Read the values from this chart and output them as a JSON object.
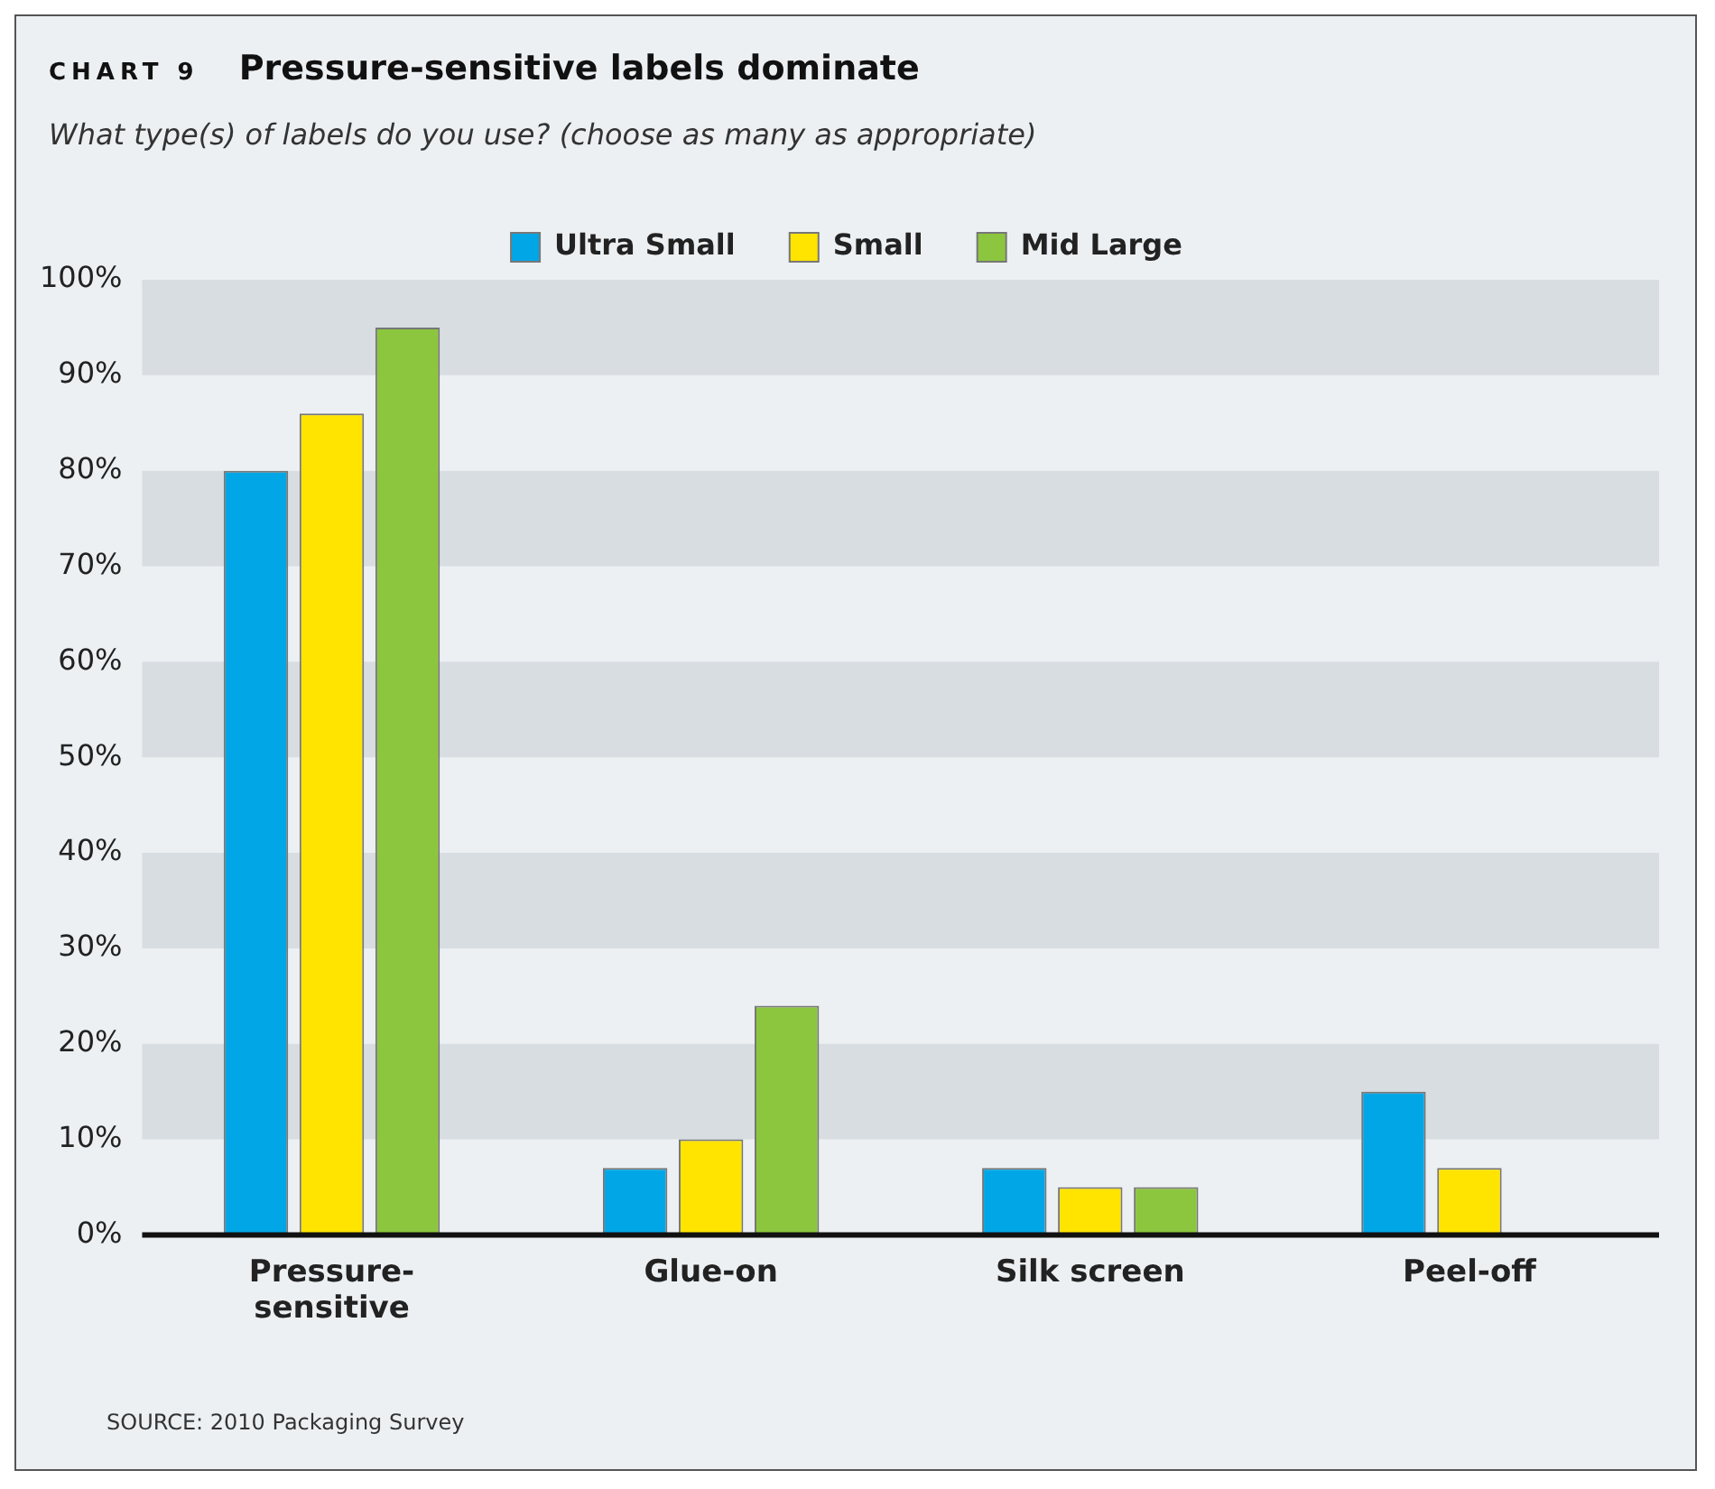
{
  "chart_data": {
    "type": "bar",
    "title": "Pressure-sensitive labels dominate",
    "subtitle": "What type(s) of labels do you use? (choose as many as appropriate)",
    "annotations": [
      "CHART 9",
      "SOURCE: 2010 Packaging Survey"
    ],
    "categories": [
      "Pressure-\nsensitive",
      "Glue-on",
      "Silk screen",
      "Peel-off"
    ],
    "series": [
      {
        "name": "Ultra Small",
        "color": "#00a6e6",
        "values": [
          80,
          7,
          7,
          15
        ]
      },
      {
        "name": "Small",
        "color": "#ffe400",
        "values": [
          86,
          10,
          5,
          7
        ]
      },
      {
        "name": "Mid Large",
        "color": "#8cc63e",
        "values": [
          95,
          24,
          5,
          null
        ]
      }
    ],
    "ylim": [
      0,
      100
    ],
    "yticks": [
      {
        "value": 0,
        "label": "0%"
      },
      {
        "value": 10,
        "label": "10%"
      },
      {
        "value": 20,
        "label": "20%"
      },
      {
        "value": 30,
        "label": "30%"
      },
      {
        "value": 40,
        "label": "40%"
      },
      {
        "value": 50,
        "label": "50%"
      },
      {
        "value": 60,
        "label": "60%"
      },
      {
        "value": 70,
        "label": "70%"
      },
      {
        "value": 80,
        "label": "80%"
      },
      {
        "value": 90,
        "label": "90%"
      },
      {
        "value": 100,
        "label": "100%"
      }
    ],
    "legend": "top"
  }
}
